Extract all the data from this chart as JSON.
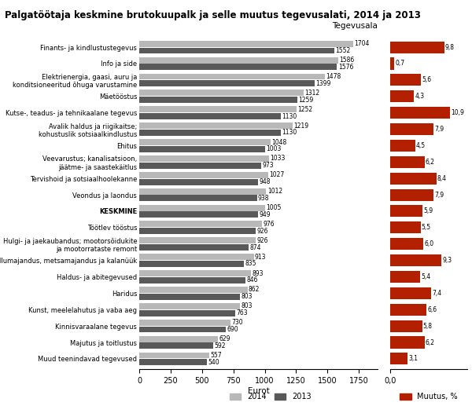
{
  "title": "Palgatöötaja keskmine brutokuupalk ja selle muutus tegevusalati, 2014 ja 2013",
  "categories": [
    "Finants- ja kindlustustegevus",
    "Info ja side",
    "Elektrienergia, gaasi, auru ja\nkonditsioneeritud õhuga varustamine",
    "Mäetööstus",
    "Kutse-, teadus- ja tehnikaalane tegevus",
    "Avalik haldus ja riigikaitse;\nkohustuslik sotsiaalkindlustus",
    "Ehitus",
    "Veevarustus; kanalisatsioon,\njäätme- ja saastekäitlus",
    "Tervishoid ja sotsiaalhoolekanne",
    "Veondus ja laondus",
    "KESKMINE",
    "Töötlev tööstus",
    "Hulgi- ja jaekaubandus; mootorsõidukite\nja mootorrataste remont",
    "Põllumajandus, metsamajandus ja kalaпüük",
    "Haldus- ja abitegevused",
    "Haridus",
    "Kunst, meelelahutus ja vaba aeg",
    "Kinnisvaraalane tegevus",
    "Majutus ja toitlustus",
    "Muud teenindavad tegevused"
  ],
  "val_2014": [
    1704,
    1586,
    1478,
    1312,
    1252,
    1219,
    1048,
    1033,
    1027,
    1012,
    1005,
    976,
    926,
    913,
    893,
    862,
    803,
    730,
    629,
    557
  ],
  "val_2013": [
    1552,
    1576,
    1399,
    1259,
    1130,
    1130,
    1003,
    973,
    948,
    938,
    949,
    926,
    874,
    835,
    846,
    803,
    763,
    690,
    592,
    540
  ],
  "muutus": [
    9.8,
    0.7,
    5.6,
    4.3,
    10.9,
    7.9,
    4.5,
    6.2,
    8.4,
    7.9,
    5.9,
    5.5,
    6.0,
    9.3,
    5.4,
    7.4,
    6.6,
    5.8,
    6.2,
    3.1
  ],
  "color_2014": "#b8b8b8",
  "color_2013": "#595959",
  "color_muutus": "#b22000",
  "xlabel_left": "Eurot",
  "legend_2014": "2014",
  "legend_2013": "2013",
  "legend_muutus": "Muutus, %",
  "xlim_left": [
    0,
    1900
  ],
  "xticks_left": [
    0,
    250,
    500,
    750,
    1000,
    1250,
    1500,
    1750
  ],
  "col_header": "Tegevusala",
  "figsize": [
    6.0,
    5.17
  ],
  "dpi": 100
}
